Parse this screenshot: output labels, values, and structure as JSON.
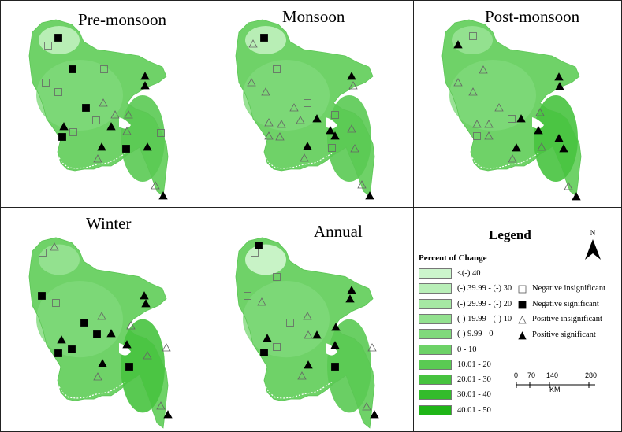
{
  "panels": [
    {
      "title": "Pre-monsoon"
    },
    {
      "title": "Monsoon"
    },
    {
      "title": "Post-monsoon"
    },
    {
      "title": "Winter"
    },
    {
      "title": "Annual"
    }
  ],
  "legend": {
    "title": "Legend",
    "percent_title": "Percent of Change",
    "classes": [
      {
        "label": "<(-) 40",
        "color": "#ccf5cc"
      },
      {
        "label": "(-) 39.99 - (-) 30",
        "color": "#b9efb8"
      },
      {
        "label": "(-) 29.99 - (-) 20",
        "color": "#a6e8a3"
      },
      {
        "label": "(-) 19.99 - (-) 10",
        "color": "#93e18f"
      },
      {
        "label": "(-) 9.99 - 0",
        "color": "#80d97b"
      },
      {
        "label": "0 - 10",
        "color": "#6dd267"
      },
      {
        "label": "10.01 - 20",
        "color": "#5aca53"
      },
      {
        "label": "20.01 - 30",
        "color": "#47c33f"
      },
      {
        "label": "30.01 - 40",
        "color": "#33bc2b"
      },
      {
        "label": "40.01 - 50",
        "color": "#1fb517"
      }
    ],
    "symbols": [
      {
        "type": "neg-insig",
        "label": "Negative insignificant"
      },
      {
        "type": "neg-sig",
        "label": "Negative significant"
      },
      {
        "type": "pos-insig",
        "label": "Positive insignificant"
      },
      {
        "type": "pos-sig",
        "label": "Positive significant"
      }
    ],
    "north": "N",
    "scale": {
      "ticks": [
        "0",
        "70",
        "140",
        "280"
      ],
      "unit": "KM"
    }
  }
}
